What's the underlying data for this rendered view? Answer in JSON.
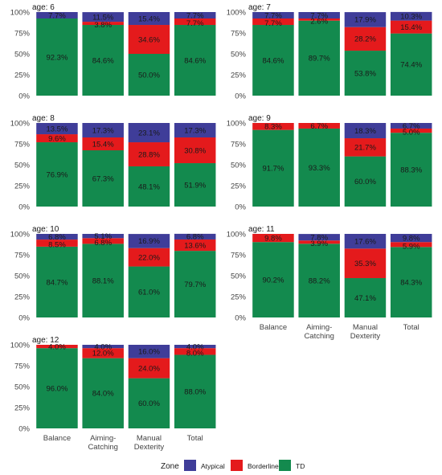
{
  "chart_data": {
    "type": "bar",
    "stacked": true,
    "categories": [
      "Balance",
      "Aiming-\nCatching",
      "Manual\nDexterity",
      "Total"
    ],
    "yticks": [
      "0%",
      "25%",
      "50%",
      "75%",
      "100%"
    ],
    "ylim": [
      0,
      100
    ],
    "legend": {
      "title": "Zone",
      "position": "bottom",
      "items": [
        {
          "name": "Atypical",
          "color": "#3f3d99"
        },
        {
          "name": "Borderline",
          "color": "#e41a1c"
        },
        {
          "name": "TD",
          "color": "#138a4e"
        }
      ]
    },
    "panels": [
      {
        "title": "age: 6",
        "atypical": [
          7.7,
          11.5,
          15.4,
          7.7
        ],
        "borderline": [
          0,
          3.8,
          34.6,
          7.7
        ],
        "td": [
          92.3,
          84.6,
          50.0,
          84.6
        ],
        "labels": [
          [
            "7.7%",
            "",
            "92.3%"
          ],
          [
            "11.5%",
            "3.8%",
            "84.6%"
          ],
          [
            "15.4%",
            "34.6%",
            "50.0%"
          ],
          [
            "7.7%",
            "7.7%",
            "84.6%"
          ]
        ]
      },
      {
        "title": "age: 7",
        "atypical": [
          7.7,
          7.7,
          17.9,
          10.3
        ],
        "borderline": [
          7.7,
          2.6,
          28.2,
          15.4
        ],
        "td": [
          84.6,
          89.7,
          53.8,
          74.4
        ],
        "labels": [
          [
            "7.7%",
            "7.7%",
            "84.6%"
          ],
          [
            "7.7%",
            "2.6%",
            "89.7%"
          ],
          [
            "17.9%",
            "28.2%",
            "53.8%"
          ],
          [
            "10.3%",
            "15.4%",
            "74.4%"
          ]
        ]
      },
      {
        "title": "age: 8",
        "atypical": [
          13.5,
          17.3,
          23.1,
          17.3
        ],
        "borderline": [
          9.6,
          15.4,
          28.8,
          30.8
        ],
        "td": [
          76.9,
          67.3,
          48.1,
          51.9
        ],
        "labels": [
          [
            "13.5%",
            "9.6%",
            "76.9%"
          ],
          [
            "17.3%",
            "15.4%",
            "67.3%"
          ],
          [
            "23.1%",
            "28.8%",
            "48.1%"
          ],
          [
            "17.3%",
            "30.8%",
            "51.9%"
          ]
        ]
      },
      {
        "title": "age: 9",
        "atypical": [
          0,
          0,
          18.3,
          6.7
        ],
        "borderline": [
          8.3,
          6.7,
          21.7,
          5.0
        ],
        "td": [
          91.7,
          93.3,
          60.0,
          88.3
        ],
        "labels": [
          [
            "",
            "8.3%",
            "91.7%"
          ],
          [
            "",
            "6.7%",
            "93.3%"
          ],
          [
            "18.3%",
            "21.7%",
            "60.0%"
          ],
          [
            "6.7%",
            "5.0%",
            "88.3%"
          ]
        ]
      },
      {
        "title": "age: 10",
        "atypical": [
          6.8,
          5.1,
          16.9,
          6.8
        ],
        "borderline": [
          8.5,
          6.8,
          22.0,
          13.6
        ],
        "td": [
          84.7,
          88.1,
          61.0,
          79.7
        ],
        "labels": [
          [
            "6.8%",
            "8.5%",
            "84.7%"
          ],
          [
            "5.1%",
            "6.8%",
            "88.1%"
          ],
          [
            "16.9%",
            "22.0%",
            "61.0%"
          ],
          [
            "6.8%",
            "13.6%",
            "79.7%"
          ]
        ]
      },
      {
        "title": "age: 11",
        "atypical": [
          0,
          7.8,
          17.6,
          9.8
        ],
        "borderline": [
          9.8,
          3.9,
          35.3,
          5.9
        ],
        "td": [
          90.2,
          88.2,
          47.1,
          84.3
        ],
        "labels": [
          [
            "",
            "9.8%",
            "90.2%"
          ],
          [
            "7.8%",
            "3.9%",
            "88.2%"
          ],
          [
            "17.6%",
            "35.3%",
            "47.1%"
          ],
          [
            "9.8%",
            "5.9%",
            "84.3%"
          ]
        ]
      },
      {
        "title": "age: 12",
        "atypical": [
          0,
          4.0,
          16.0,
          4.0
        ],
        "borderline": [
          4.0,
          12.0,
          24.0,
          8.0
        ],
        "td": [
          96.0,
          84.0,
          60.0,
          88.0
        ],
        "labels": [
          [
            "",
            "4.0%",
            "96.0%"
          ],
          [
            "4.0%",
            "12.0%",
            "84.0%"
          ],
          [
            "16.0%",
            "24.0%",
            "60.0%"
          ],
          [
            "4.0%",
            "8.0%",
            "88.0%"
          ]
        ]
      }
    ]
  }
}
